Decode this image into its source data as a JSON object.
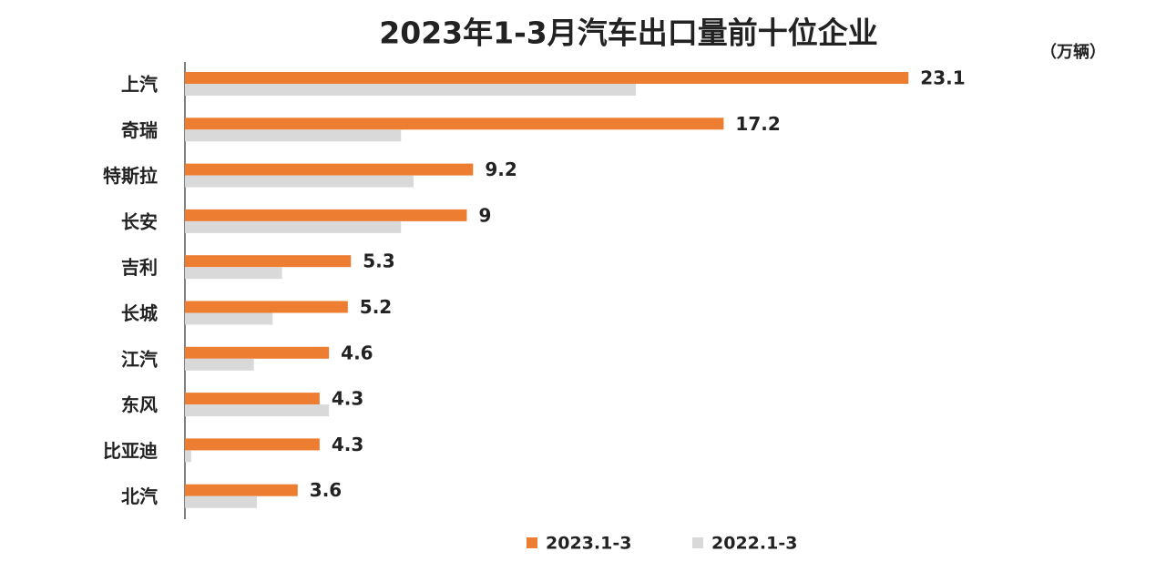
{
  "chart_data": {
    "type": "hbar",
    "title": "2023年1-3月汽车出口量前十位企业",
    "unit_label": "（万辆）",
    "categories": [
      "上汽",
      "奇瑞",
      "特斯拉",
      "长安",
      "吉利",
      "长城",
      "江汽",
      "东风",
      "比亚迪",
      "北汽"
    ],
    "series": [
      {
        "name": "2023.1-3",
        "color": "#ed7d31",
        "values": [
          23.1,
          17.2,
          9.2,
          9,
          5.3,
          5.2,
          4.6,
          4.3,
          4.3,
          3.6
        ]
      },
      {
        "name": "2022.1-3",
        "color": "#d9d9d9",
        "values": [
          14.4,
          6.9,
          7.3,
          6.9,
          3.1,
          2.8,
          2.2,
          4.6,
          0.2,
          2.3
        ]
      }
    ],
    "xlim": [
      0,
      26
    ]
  }
}
